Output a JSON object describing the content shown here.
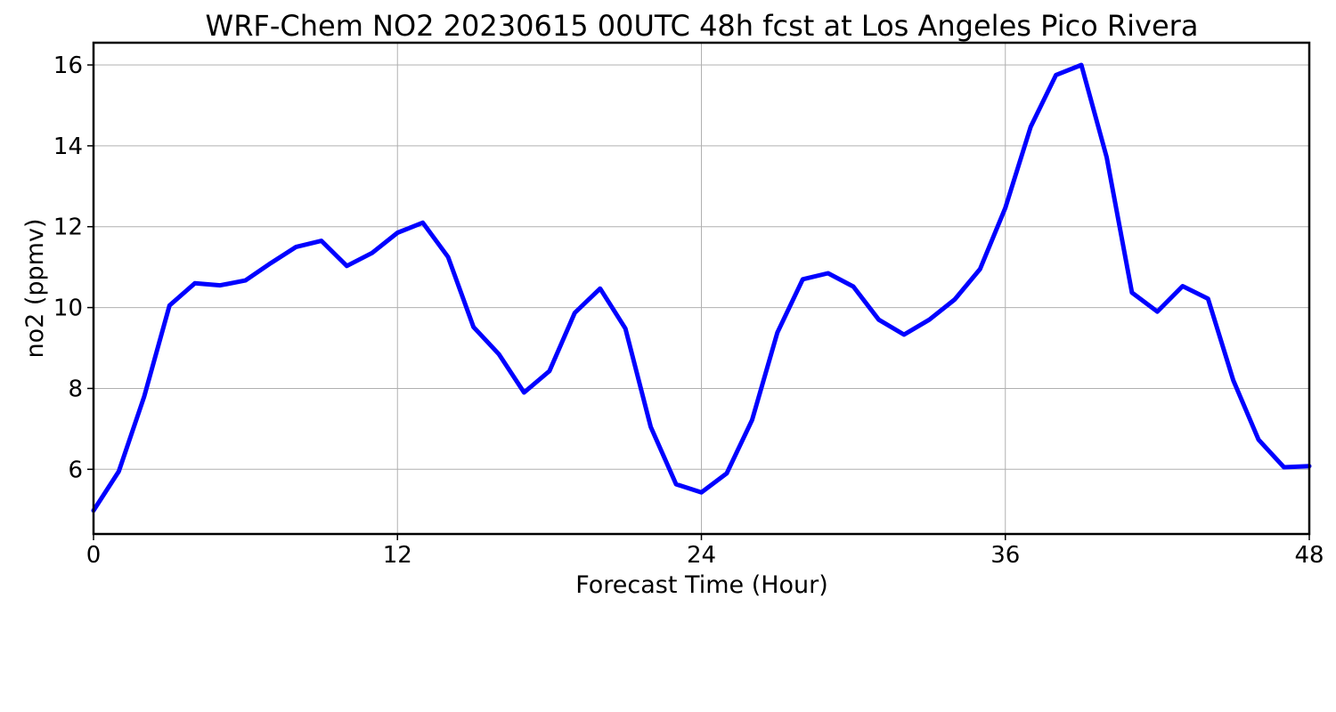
{
  "chart_data": {
    "type": "line",
    "title": "WRF-Chem NO2  20230615 00UTC 48h fcst at Los Angeles Pico Rivera",
    "xlabel": "Forecast Time (Hour)",
    "ylabel": "no2  (ppmv)",
    "xlim": [
      0,
      48
    ],
    "ylim": [
      4.4,
      16.55
    ],
    "x_ticks": [
      0,
      12,
      24,
      36,
      48
    ],
    "y_ticks": [
      6,
      8,
      10,
      12,
      14,
      16
    ],
    "grid": true,
    "line_color": "#0000ff",
    "x": [
      0,
      1,
      2,
      3,
      4,
      5,
      6,
      7,
      8,
      9,
      10,
      11,
      12,
      13,
      14,
      15,
      16,
      17,
      18,
      19,
      20,
      21,
      22,
      23,
      24,
      25,
      26,
      27,
      28,
      29,
      30,
      31,
      32,
      33,
      34,
      35,
      36,
      37,
      38,
      39,
      40,
      41,
      42,
      43,
      44,
      45,
      46,
      47,
      48
    ],
    "values": [
      4.98,
      5.95,
      7.8,
      10.05,
      10.6,
      10.55,
      10.67,
      11.1,
      11.5,
      11.65,
      11.03,
      11.35,
      11.85,
      12.1,
      11.25,
      9.52,
      8.85,
      7.9,
      8.43,
      9.87,
      10.47,
      9.48,
      7.05,
      5.63,
      5.43,
      5.9,
      7.22,
      9.38,
      10.7,
      10.85,
      10.52,
      9.7,
      9.33,
      9.7,
      10.2,
      10.95,
      12.47,
      14.47,
      15.75,
      16.0,
      13.72,
      10.37,
      9.9,
      10.53,
      10.22,
      8.2,
      6.73,
      6.05,
      6.08
    ]
  }
}
